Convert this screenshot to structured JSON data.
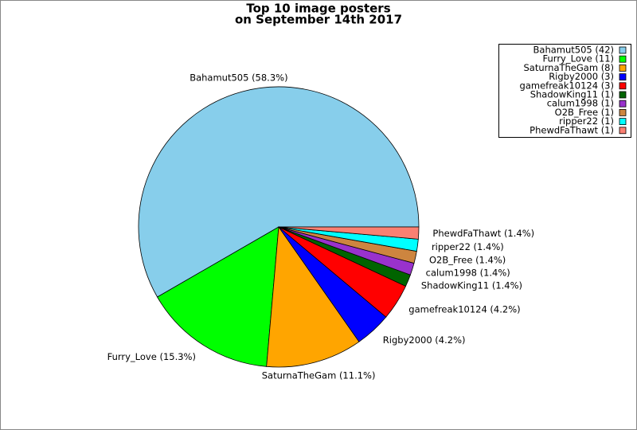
{
  "chart_data": {
    "type": "pie",
    "title": [
      "Top 10 image posters",
      "on September 14th 2017"
    ],
    "categories": [
      "Bahamut505 (42)",
      "Furry_Love (11)",
      "SaturnaTheGam (8)",
      "Rigby2000 (3)",
      "gamefreak10124 (3)",
      "ShadowKing11 (1)",
      "calum1998 (1)",
      "O2B_Free (1)",
      "ripper22 (1)",
      "PhewdFaThawt (1)"
    ],
    "slice_labels": [
      "Bahamut505 (58.3%)",
      "Furry_Love (15.3%)",
      "SaturnaTheGam (11.1%)",
      "Rigby2000 (4.2%)",
      "gamefreak10124 (4.2%)",
      "ShadowKing11 (1.4%)",
      "calum1998 (1.4%)",
      "O2B_Free (1.4%)",
      "ripper22 (1.4%)",
      "PhewdFaThawt (1.4%)"
    ],
    "values": [
      42,
      11,
      8,
      3,
      3,
      1,
      1,
      1,
      1,
      1
    ],
    "colors": [
      "#87ceeb",
      "#00ff00",
      "#ffa500",
      "#0000ff",
      "#ff0000",
      "#006400",
      "#9932cc",
      "#cd853f",
      "#00ffff",
      "#fa8072"
    ],
    "legend": "upper right"
  }
}
